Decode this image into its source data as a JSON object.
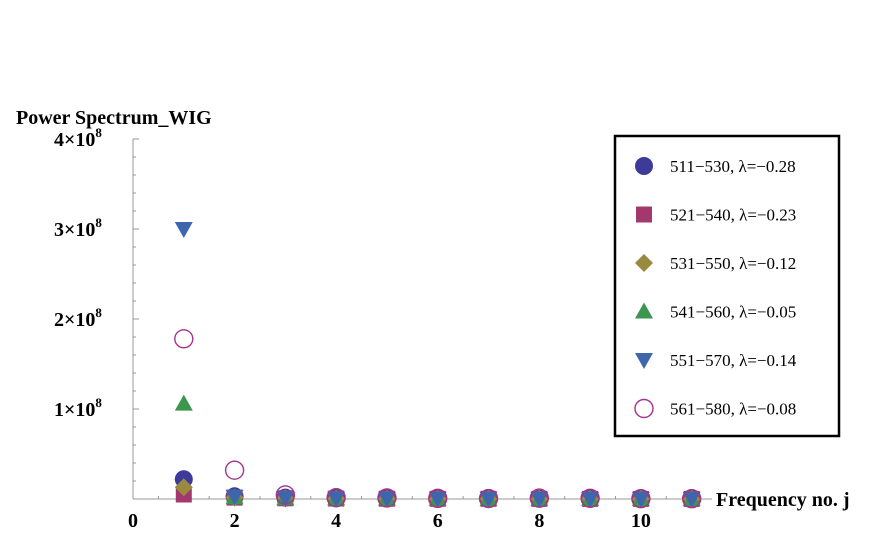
{
  "chart_data": {
    "type": "scatter",
    "ylabel": "Power Spectrum_WIG",
    "xlabel": "Frequency no. j",
    "xlim": [
      0,
      11.4
    ],
    "ylim": [
      0,
      400000000
    ],
    "x_ticks": [
      {
        "value": 0,
        "label": "0"
      },
      {
        "value": 2,
        "label": "2"
      },
      {
        "value": 4,
        "label": "4"
      },
      {
        "value": 6,
        "label": "6"
      },
      {
        "value": 8,
        "label": "8"
      },
      {
        "value": 10,
        "label": "10"
      }
    ],
    "y_ticks": [
      {
        "value": 100000000,
        "label_base": "1×10",
        "label_exp": "8"
      },
      {
        "value": 200000000,
        "label_base": "2×10",
        "label_exp": "8"
      },
      {
        "value": 300000000,
        "label_base": "3×10",
        "label_exp": "8"
      },
      {
        "value": 400000000,
        "label_base": "4×10",
        "label_exp": "8"
      }
    ],
    "grid": false,
    "legend_placement": "right",
    "series": [
      {
        "name": "511−530,  λ=−0.28",
        "marker": "circle",
        "color": "#3d3a99",
        "x": [
          1,
          2,
          3,
          4,
          5,
          6,
          7,
          8,
          9,
          10,
          11
        ],
        "y": [
          22000000,
          3000000,
          1500000,
          800000,
          500000,
          400000,
          300000,
          250000,
          200000,
          150000,
          100000
        ]
      },
      {
        "name": "521−540,  λ=−0.23",
        "marker": "square",
        "color": "#a3386f",
        "x": [
          1,
          2,
          3,
          4,
          5,
          6,
          7,
          8,
          9,
          10,
          11
        ],
        "y": [
          5000000,
          1500000,
          800000,
          500000,
          300000,
          250000,
          200000,
          150000,
          120000,
          100000,
          80000
        ]
      },
      {
        "name": "531−550,  λ=−0.12",
        "marker": "diamond",
        "color": "#9a8a40",
        "x": [
          1,
          2,
          3,
          4,
          5,
          6,
          7,
          8,
          9,
          10,
          11
        ],
        "y": [
          13000000,
          1500000,
          700000,
          400000,
          300000,
          200000,
          150000,
          120000,
          100000,
          80000,
          60000
        ]
      },
      {
        "name": "541−560,  λ=−0.05",
        "marker": "triangle-up",
        "color": "#3d9650",
        "x": [
          1,
          2,
          3,
          4,
          5,
          6,
          7,
          8,
          9,
          10,
          11
        ],
        "y": [
          106000000,
          2000000,
          800000,
          500000,
          300000,
          250000,
          200000,
          150000,
          120000,
          100000,
          80000
        ]
      },
      {
        "name": "551−570,  λ=−0.14",
        "marker": "triangle-down",
        "color": "#3f66ad",
        "x": [
          1,
          2,
          3,
          4,
          5,
          6,
          7,
          8,
          9,
          10,
          11
        ],
        "y": [
          300000000,
          2500000,
          1000000,
          600000,
          400000,
          300000,
          250000,
          200000,
          150000,
          120000,
          100000
        ]
      },
      {
        "name": "561−580,  λ=−0.08",
        "marker": "open-circle",
        "color": "#a3338c",
        "x": [
          1,
          2,
          3,
          4,
          5,
          6,
          7,
          8,
          9,
          10,
          11
        ],
        "y": [
          178000000,
          32000000,
          4500000,
          1500000,
          1200000,
          700000,
          500000,
          1000000,
          800000,
          400000,
          300000
        ]
      }
    ]
  }
}
